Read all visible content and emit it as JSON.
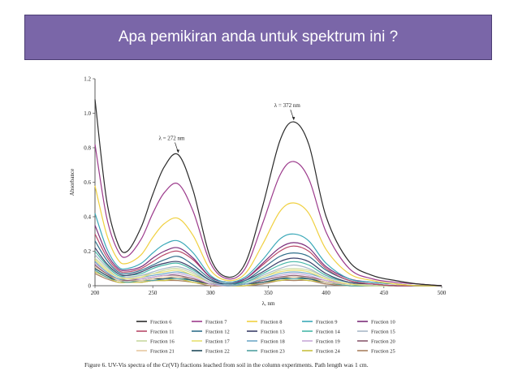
{
  "slide": {
    "title": "Apa pemikiran anda untuk spektrum ini ?"
  },
  "colors": {
    "banner": "#7a66a8",
    "banner_border": "#4b3d73"
  },
  "caption": "Figure 6. UV-Vis spectra of the Cr(VI) fractions leached from soil in the column experiments. Path length was 1 cm.",
  "chart_data": {
    "type": "line",
    "xlabel": "λ, nm",
    "ylabel": "Absorbance",
    "xlim": [
      200,
      500
    ],
    "ylim": [
      0,
      1.2
    ],
    "xticks": [
      200,
      250,
      300,
      350,
      400,
      450,
      500
    ],
    "yticks": [
      0,
      0.2,
      0.4,
      0.6,
      0.8,
      1.0,
      1.2
    ],
    "xtick_labels": [
      "200",
      "250",
      "300",
      "350",
      "400",
      "450",
      "500"
    ],
    "ytick_labels": [
      "0",
      "0.2",
      "0.4",
      "0.6",
      "0.8",
      "1.0",
      "1.2"
    ],
    "annotations": [
      {
        "text": "λ = 272 nm",
        "x": 272,
        "y": 0.76
      },
      {
        "text": "λ = 372 nm",
        "x": 372,
        "y": 0.95
      }
    ],
    "x": [
      200,
      210,
      220,
      228,
      240,
      250,
      260,
      272,
      285,
      300,
      315,
      330,
      345,
      360,
      372,
      385,
      400,
      420,
      440,
      460,
      480,
      500
    ],
    "series": [
      {
        "name": "Fraction 6",
        "color": "#2b2b2b",
        "values": [
          1.08,
          0.5,
          0.24,
          0.2,
          0.34,
          0.53,
          0.69,
          0.76,
          0.55,
          0.16,
          0.05,
          0.13,
          0.46,
          0.84,
          0.95,
          0.82,
          0.4,
          0.14,
          0.06,
          0.03,
          0.01,
          0.0
        ]
      },
      {
        "name": "Fraction 7",
        "color": "#9c3b8c",
        "values": [
          0.82,
          0.4,
          0.2,
          0.17,
          0.27,
          0.42,
          0.54,
          0.59,
          0.43,
          0.13,
          0.04,
          0.1,
          0.36,
          0.64,
          0.72,
          0.62,
          0.31,
          0.1,
          0.04,
          0.02,
          0.01,
          0.0
        ]
      },
      {
        "name": "Fraction 8",
        "color": "#f0d040",
        "values": [
          0.58,
          0.3,
          0.15,
          0.13,
          0.18,
          0.28,
          0.36,
          0.39,
          0.29,
          0.09,
          0.03,
          0.07,
          0.24,
          0.43,
          0.48,
          0.42,
          0.21,
          0.07,
          0.03,
          0.01,
          0.0,
          0.0
        ]
      },
      {
        "name": "Fraction 9",
        "color": "#3aa8b8",
        "values": [
          0.42,
          0.22,
          0.11,
          0.1,
          0.13,
          0.19,
          0.24,
          0.26,
          0.19,
          0.06,
          0.02,
          0.05,
          0.15,
          0.27,
          0.3,
          0.26,
          0.13,
          0.04,
          0.02,
          0.01,
          0.0,
          0.0
        ]
      },
      {
        "name": "Fraction 10",
        "color": "#7b2d7a",
        "values": [
          0.35,
          0.19,
          0.1,
          0.09,
          0.11,
          0.16,
          0.2,
          0.22,
          0.16,
          0.05,
          0.02,
          0.04,
          0.13,
          0.22,
          0.25,
          0.22,
          0.11,
          0.04,
          0.02,
          0.01,
          0.0,
          0.0
        ]
      },
      {
        "name": "Fraction 11",
        "color": "#b84a6a",
        "values": [
          0.3,
          0.17,
          0.09,
          0.08,
          0.1,
          0.14,
          0.18,
          0.2,
          0.15,
          0.05,
          0.02,
          0.04,
          0.12,
          0.2,
          0.23,
          0.2,
          0.1,
          0.03,
          0.01,
          0.0,
          0.0,
          0.0
        ]
      },
      {
        "name": "Fraction 12",
        "color": "#2f6f8a",
        "values": [
          0.26,
          0.15,
          0.08,
          0.07,
          0.09,
          0.12,
          0.15,
          0.17,
          0.12,
          0.04,
          0.01,
          0.03,
          0.1,
          0.17,
          0.19,
          0.17,
          0.09,
          0.03,
          0.01,
          0.0,
          0.0,
          0.0
        ]
      },
      {
        "name": "Fraction 13",
        "color": "#3a3f6a",
        "values": [
          0.22,
          0.13,
          0.07,
          0.06,
          0.08,
          0.11,
          0.13,
          0.14,
          0.1,
          0.03,
          0.01,
          0.03,
          0.08,
          0.14,
          0.16,
          0.14,
          0.07,
          0.02,
          0.01,
          0.0,
          0.0,
          0.0
        ]
      },
      {
        "name": "Fraction 14",
        "color": "#48b8a8",
        "values": [
          0.2,
          0.12,
          0.06,
          0.06,
          0.07,
          0.1,
          0.12,
          0.13,
          0.09,
          0.03,
          0.01,
          0.02,
          0.07,
          0.12,
          0.14,
          0.12,
          0.06,
          0.02,
          0.01,
          0.0,
          0.0,
          0.0
        ]
      },
      {
        "name": "Fraction 15",
        "color": "#a8b8c8",
        "values": [
          0.18,
          0.11,
          0.06,
          0.05,
          0.06,
          0.08,
          0.1,
          0.11,
          0.08,
          0.02,
          0.01,
          0.02,
          0.06,
          0.1,
          0.12,
          0.1,
          0.05,
          0.02,
          0.01,
          0.0,
          0.0,
          0.0
        ]
      },
      {
        "name": "Fraction 16",
        "color": "#c8d8a0",
        "values": [
          0.16,
          0.1,
          0.05,
          0.05,
          0.06,
          0.07,
          0.09,
          0.1,
          0.07,
          0.02,
          0.01,
          0.02,
          0.05,
          0.09,
          0.1,
          0.09,
          0.05,
          0.02,
          0.0,
          0.0,
          0.0,
          0.0
        ]
      },
      {
        "name": "Fraction 17",
        "color": "#e8e070",
        "values": [
          0.15,
          0.09,
          0.05,
          0.04,
          0.05,
          0.07,
          0.08,
          0.09,
          0.06,
          0.02,
          0.01,
          0.02,
          0.05,
          0.08,
          0.09,
          0.08,
          0.04,
          0.01,
          0.0,
          0.0,
          0.0,
          0.0
        ]
      },
      {
        "name": "Fraction 18",
        "color": "#70a8c8",
        "values": [
          0.14,
          0.08,
          0.04,
          0.04,
          0.05,
          0.06,
          0.07,
          0.08,
          0.06,
          0.02,
          0.0,
          0.01,
          0.04,
          0.07,
          0.08,
          0.07,
          0.04,
          0.01,
          0.0,
          0.0,
          0.0,
          0.0
        ]
      },
      {
        "name": "Fraction 19",
        "color": "#c8a8d8",
        "values": [
          0.13,
          0.08,
          0.04,
          0.04,
          0.04,
          0.05,
          0.06,
          0.07,
          0.05,
          0.01,
          0.0,
          0.01,
          0.04,
          0.06,
          0.07,
          0.06,
          0.03,
          0.01,
          0.0,
          0.0,
          0.0,
          0.0
        ]
      },
      {
        "name": "Fraction 20",
        "color": "#8a5a70",
        "values": [
          0.12,
          0.07,
          0.04,
          0.03,
          0.04,
          0.05,
          0.06,
          0.06,
          0.04,
          0.01,
          0.0,
          0.01,
          0.03,
          0.05,
          0.06,
          0.05,
          0.03,
          0.01,
          0.0,
          0.0,
          0.0,
          0.0
        ]
      },
      {
        "name": "Fraction 21",
        "color": "#e8c8a0",
        "values": [
          0.11,
          0.07,
          0.03,
          0.03,
          0.03,
          0.04,
          0.05,
          0.05,
          0.04,
          0.01,
          0.0,
          0.01,
          0.03,
          0.05,
          0.05,
          0.05,
          0.02,
          0.01,
          0.0,
          0.0,
          0.0,
          0.0
        ]
      },
      {
        "name": "Fraction 22",
        "color": "#1f4a5a",
        "values": [
          0.1,
          0.06,
          0.03,
          0.03,
          0.03,
          0.04,
          0.04,
          0.05,
          0.03,
          0.01,
          0.0,
          0.01,
          0.02,
          0.04,
          0.05,
          0.04,
          0.02,
          0.01,
          0.0,
          0.0,
          0.0,
          0.0
        ]
      },
      {
        "name": "Fraction 23",
        "color": "#50a0a0",
        "values": [
          0.09,
          0.05,
          0.03,
          0.02,
          0.03,
          0.03,
          0.04,
          0.04,
          0.03,
          0.01,
          0.0,
          0.01,
          0.02,
          0.04,
          0.04,
          0.04,
          0.02,
          0.0,
          0.0,
          0.0,
          0.0,
          0.0
        ]
      },
      {
        "name": "Fraction 24",
        "color": "#c8c040",
        "values": [
          0.08,
          0.05,
          0.02,
          0.02,
          0.02,
          0.03,
          0.03,
          0.04,
          0.02,
          0.01,
          0.0,
          0.0,
          0.02,
          0.03,
          0.04,
          0.03,
          0.02,
          0.0,
          0.0,
          0.0,
          0.0,
          0.0
        ]
      },
      {
        "name": "Fraction 25",
        "color": "#a88060",
        "values": [
          0.07,
          0.04,
          0.02,
          0.02,
          0.02,
          0.03,
          0.03,
          0.03,
          0.02,
          0.0,
          0.0,
          0.0,
          0.01,
          0.03,
          0.03,
          0.03,
          0.01,
          0.0,
          0.0,
          0.0,
          0.0,
          0.0
        ]
      }
    ]
  }
}
